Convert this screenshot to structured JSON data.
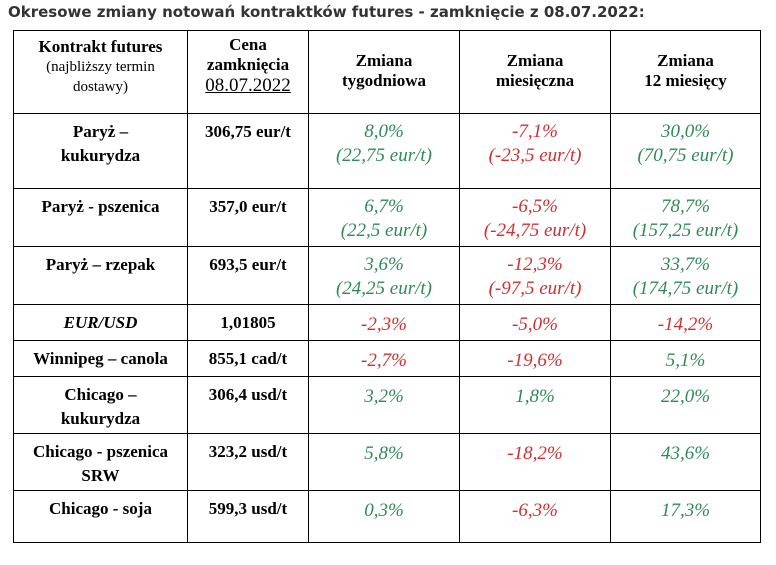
{
  "title": "Okresowe zmiany notowań kontraktków futures - zamknięcie z 08.07.2022:",
  "colors": {
    "positive": "#2e8b57",
    "negative": "#d03030"
  },
  "header": {
    "contract_line1": "Kontrakt futures",
    "contract_line2": "(najbliższy termin",
    "contract_line3": "dostawy)",
    "price_line1": "Cena",
    "price_line2": "zamknięcia",
    "price_date": "08.07.2022",
    "weekly_line1": "Zmiana",
    "weekly_line2": "tygodniowa",
    "monthly_line1": "Zmiana",
    "monthly_line2": "miesięczna",
    "yearly_line1": "Zmiana",
    "yearly_line2": "12 miesięcy"
  },
  "rows": [
    {
      "name1": "Paryż –",
      "name2": "kukurydza",
      "price": "306,75 eur/t",
      "w1": "8,0%",
      "w2": "(22,75 eur/t)",
      "w_dir": "pos",
      "m1": "-7,1%",
      "m2": "(-23,5 eur/t)",
      "m_dir": "neg",
      "y1": "30,0%",
      "y2": "(70,75 eur/t)",
      "y_dir": "pos"
    },
    {
      "name1": "Paryż - pszenica",
      "price": "357,0 eur/t",
      "w1": "6,7%",
      "w2": "(22,5 eur/t)",
      "w_dir": "pos",
      "m1": "-6,5%",
      "m2": "(-24,75 eur/t)",
      "m_dir": "neg",
      "y1": "78,7%",
      "y2": "(157,25 eur/t)",
      "y_dir": "pos"
    },
    {
      "name1": "Paryż – rzepak",
      "price": "693,5 eur/t",
      "w1": "3,6%",
      "w2": "(24,25 eur/t)",
      "w_dir": "pos",
      "m1": "-12,3%",
      "m2": "(-97,5 eur/t)",
      "m_dir": "neg",
      "y1": "33,7%",
      "y2": "(174,75 eur/t)",
      "y_dir": "pos"
    },
    {
      "name1": "EUR/USD",
      "price": "1,01805",
      "w1": "-2,3%",
      "w_dir": "neg",
      "m1": "-5,0%",
      "m_dir": "neg",
      "y1": "-14,2%",
      "y_dir": "neg"
    },
    {
      "name1": "Winnipeg – canola",
      "price": "855,1 cad/t",
      "w1": "-2,7%",
      "w_dir": "neg",
      "m1": "-19,6%",
      "m_dir": "neg",
      "y1": "5,1%",
      "y_dir": "pos"
    },
    {
      "name1": "Chicago –",
      "name2": "kukurydza",
      "price": "306,4 usd/t",
      "w1": "3,2%",
      "w_dir": "pos",
      "m1": "1,8%",
      "m_dir": "pos",
      "y1": "22,0%",
      "y_dir": "pos"
    },
    {
      "name1": "Chicago - pszenica",
      "name2": "SRW",
      "price": "323,2 usd/t",
      "w1": "5,8%",
      "w_dir": "pos",
      "m1": "-18,2%",
      "m_dir": "neg",
      "y1": "43,6%",
      "y_dir": "pos"
    },
    {
      "name1": "Chicago - soja",
      "price": "599,3 usd/t",
      "w1": "0,3%",
      "w_dir": "pos",
      "m1": "-6,3%",
      "m_dir": "neg",
      "y1": "17,3%",
      "y_dir": "pos"
    }
  ]
}
